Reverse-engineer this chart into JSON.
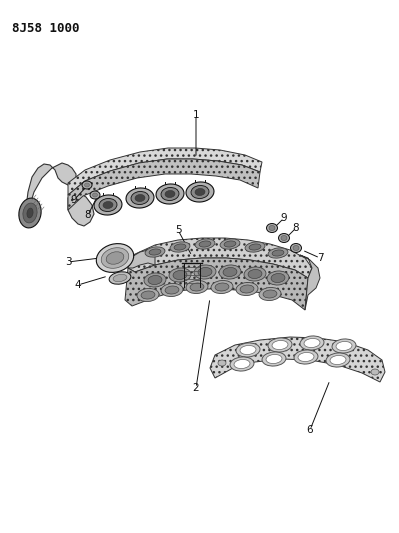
{
  "title_code": "8J58 1000",
  "bg": "#ffffff",
  "lc": "#111111",
  "fig_width": 3.99,
  "fig_height": 5.33,
  "dpi": 100
}
